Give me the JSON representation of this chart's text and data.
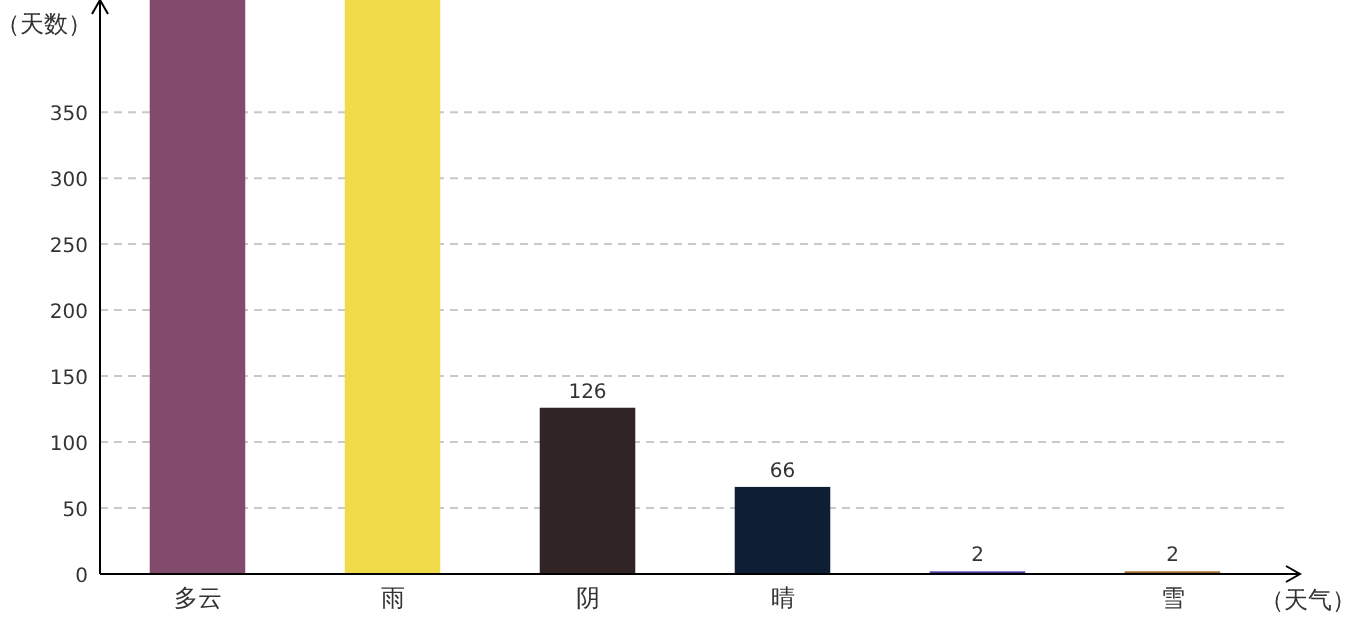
{
  "chart_data": {
    "type": "bar",
    "xlabel": "（天气）",
    "ylabel": "（天数）",
    "categories": [
      "多云",
      "雨",
      "阴",
      "晴",
      null,
      "雪"
    ],
    "values": [
      435,
      435,
      126,
      66,
      2,
      2
    ],
    "colors": [
      "#834b6b",
      "#f0dc4b",
      "#302424",
      "#0e1f35",
      "#4a3ca0",
      "#a0662a"
    ],
    "value_labels": [
      null,
      null,
      "126",
      "66",
      "2",
      "2"
    ],
    "ylim": [
      0,
      435
    ],
    "yticks": [
      0,
      50,
      100,
      150,
      200,
      250,
      300,
      350
    ],
    "grid": "y"
  }
}
